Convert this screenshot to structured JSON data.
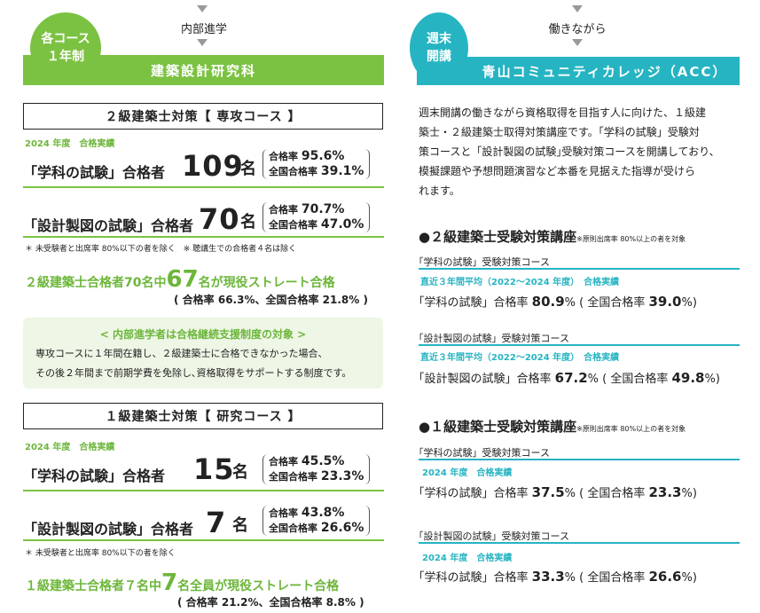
{
  "left": {
    "badge": [
      "各コース",
      "１年制"
    ],
    "arrow_caption": "内部進学",
    "banner": "建築設計研究科",
    "course1": {
      "title": "２級建築士対策【 専攻コース 】",
      "year": "2024 年度　合格実績",
      "row1": {
        "label": "「学科の試験」合格者",
        "num": "109",
        "unit": "名",
        "r1_label": "合格率",
        "r1": "95.6%",
        "r2_label": "全国合格率",
        "r2": "39.1%"
      },
      "row2": {
        "label": "「設計製図の試験」合格者",
        "num": "70",
        "unit": "名",
        "r1_label": "合格率",
        "r1": "70.7%",
        "r2_label": "全国合格率",
        "r2": "47.0%"
      },
      "note": "＊ 未受験者と出席率 80%以下の者を除く　※ 聴講生での合格者４名は除く",
      "highlight_pre": "２級建築士合格者70名中",
      "highlight_num": "67",
      "highlight_post": "名が現役ストレート合格",
      "highlight_sub": "( 合格率 66.3%、全国合格率 21.8% )",
      "support_title": "< 内部進学者は合格継続支援制度の対象 >",
      "support_l1": "専攻コースに１年間在籍し、２級建築士に合格できなかった場合、",
      "support_l2": "その後２年間まで前期学費を免除し､資格取得をサポートする制度です。"
    },
    "course2": {
      "title": "１級建築士対策【 研究コース 】",
      "year": "2024 年度　合格実績",
      "row1": {
        "label": "「学科の試験」合格者",
        "num": "15",
        "unit": "名",
        "r1_label": "合格率",
        "r1": "45.5%",
        "r2_label": "全国合格率",
        "r2": "23.3%"
      },
      "row2": {
        "label": "「設計製図の試験」合格者",
        "num": "7",
        "unit": "名",
        "r1_label": "合格率",
        "r1": "43.8%",
        "r2_label": "全国合格率",
        "r2": "26.6%"
      },
      "note": "＊ 未受験者と出席率 80%以下の者を除く",
      "highlight_pre": "１級建築士合格者７名中",
      "highlight_num": "7",
      "highlight_post": "名全員が現役ストレート合格",
      "highlight_sub": "( 合格率 21.2%、全国合格率 8.8% )"
    }
  },
  "right": {
    "badge": [
      "週末",
      "開講"
    ],
    "arrow_caption": "働きながら",
    "banner": "青山コミュニティカレッジ（ACC）",
    "intro": [
      "週末開講の働きながら資格取得を目指す人に向けた、１級建",
      "築士・２級建築士取得対策講座です。｢学科の試験」受験対",
      "策コースと「設計製図の試験｣受験対策コースを開講しており、",
      "模擬課題や予想問題演習など本番を見据えた指導が受けら",
      "れます。"
    ],
    "sec2": {
      "head": "●２級建築士受験対策講座",
      "head_note": "※原則出席率 80%以上の者を対象",
      "a_sub": "｢学科の試験」受験対策コース",
      "a_teal": "直近３年間平均（2022〜2024 年度）　合格実績",
      "a_pre": "｢学科の試験」合格率 ",
      "a_val": "80.9",
      "a_mid": "% ( 全国合格率 ",
      "a_nat": "39.0",
      "a_end": "%)",
      "b_sub": "｢設計製図の試験」受験対策コース",
      "b_teal": "直近３年間平均（2022〜2024 年度）　合格実績",
      "b_pre": "｢設計製図の試験」合格率 ",
      "b_val": "67.2",
      "b_mid": "% ( 全国合格率 ",
      "b_nat": "49.8",
      "b_end": "%)"
    },
    "sec1": {
      "head": "●１級建築士受験対策講座",
      "head_note": "※原則出席率 80%以上の者を対象",
      "a_sub": "｢学科の試験」受験対策コース",
      "a_teal": "2024 年度　合格実績",
      "a_pre": "｢学科の試験」合格率 ",
      "a_val": "37.5",
      "a_mid": "% ( 全国合格率 ",
      "a_nat": "23.3",
      "a_end": "%)",
      "b_sub": "｢設計製図の試験」受験対策コース",
      "b_teal": "2024 年度　合格実績",
      "b_pre": "｢学科の試験」合格率 ",
      "b_val": "33.3",
      "b_mid": "% ( 全国合格率 ",
      "b_nat": "26.6",
      "b_end": "%)"
    }
  },
  "colors": {
    "green": "#7cc242",
    "teal": "#26b4c2"
  }
}
